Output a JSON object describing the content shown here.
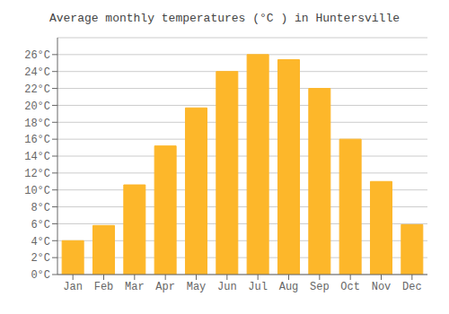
{
  "chart_data": {
    "type": "bar",
    "title": "Average monthly temperatures (°C ) in Huntersville",
    "categories": [
      "Jan",
      "Feb",
      "Mar",
      "Apr",
      "May",
      "Jun",
      "Jul",
      "Aug",
      "Sep",
      "Oct",
      "Nov",
      "Dec"
    ],
    "values": [
      4.0,
      5.8,
      10.6,
      15.2,
      19.7,
      24.0,
      26.0,
      25.4,
      22.0,
      16.0,
      11.0,
      5.9
    ],
    "color": "#FDB72A",
    "ylim": [
      0,
      28
    ],
    "yticks": [
      {
        "value": 0,
        "label": "0°C"
      },
      {
        "value": 2,
        "label": "2°C"
      },
      {
        "value": 4,
        "label": "4°C"
      },
      {
        "value": 6,
        "label": "6°C"
      },
      {
        "value": 8,
        "label": "8°C"
      },
      {
        "value": 10,
        "label": "10°C"
      },
      {
        "value": 12,
        "label": "12°C"
      },
      {
        "value": 14,
        "label": "14°C"
      },
      {
        "value": 16,
        "label": "16°C"
      },
      {
        "value": 18,
        "label": "18°C"
      },
      {
        "value": 20,
        "label": "20°C"
      },
      {
        "value": 22,
        "label": "22°C"
      },
      {
        "value": 24,
        "label": "24°C"
      },
      {
        "value": 26,
        "label": "26°C"
      }
    ],
    "grid": true
  }
}
